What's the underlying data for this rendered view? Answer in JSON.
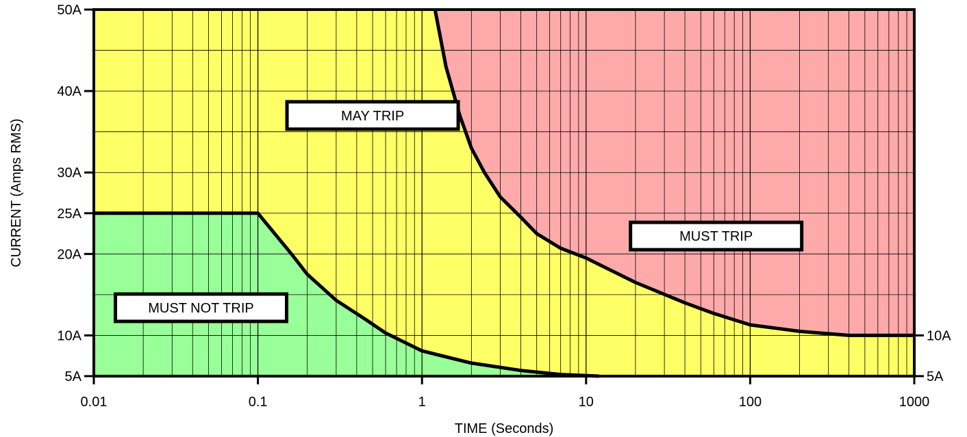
{
  "chart_data": {
    "type": "area",
    "title": "",
    "xlabel": "TIME (Seconds)",
    "ylabel": "CURRENT (Amps RMS)",
    "x_scale": "log",
    "xlim": [
      0.01,
      1000
    ],
    "ylim": [
      5,
      50
    ],
    "x_ticks": [
      {
        "value": 0.01,
        "label": "0.01"
      },
      {
        "value": 0.1,
        "label": "0.1"
      },
      {
        "value": 1,
        "label": "1"
      },
      {
        "value": 10,
        "label": "10"
      },
      {
        "value": 100,
        "label": "100"
      },
      {
        "value": 1000,
        "label": "1000"
      }
    ],
    "y_ticks": [
      {
        "value": 5,
        "label": "5A"
      },
      {
        "value": 10,
        "label": "10A"
      },
      {
        "value": 20,
        "label": "20A"
      },
      {
        "value": 25,
        "label": "25A"
      },
      {
        "value": 30,
        "label": "30A"
      },
      {
        "value": 40,
        "label": "40A"
      },
      {
        "value": 50,
        "label": "50A"
      }
    ],
    "right_labels": [
      {
        "value": 10,
        "label": "10A"
      },
      {
        "value": 5,
        "label": "5A"
      }
    ],
    "regions": [
      {
        "name": "MUST NOT TRIP",
        "color": "#99ff99",
        "label_at": {
          "x": 0.045,
          "y": 13.4
        }
      },
      {
        "name": "MAY TRIP",
        "color": "#ffff66",
        "label_at": {
          "x": 0.5,
          "y": 37
        }
      },
      {
        "name": "MUST TRIP",
        "color": "#ffaaaa",
        "label_at": {
          "x": 62,
          "y": 22.2
        }
      }
    ],
    "curves": [
      {
        "id": "must-not-trip-boundary",
        "points": [
          [
            0.01,
            25
          ],
          [
            0.1,
            25
          ],
          [
            0.16,
            20
          ],
          [
            0.2,
            17.5
          ],
          [
            0.3,
            14.3
          ],
          [
            0.45,
            12
          ],
          [
            0.6,
            10.3
          ],
          [
            1.0,
            8.1
          ],
          [
            2.0,
            6.6
          ],
          [
            4.0,
            5.7
          ],
          [
            7.0,
            5.2
          ],
          [
            12,
            5
          ]
        ]
      },
      {
        "id": "must-trip-boundary",
        "points": [
          [
            1.2,
            50
          ],
          [
            1.4,
            43
          ],
          [
            1.7,
            37
          ],
          [
            2.0,
            33
          ],
          [
            2.4,
            30
          ],
          [
            3.0,
            27
          ],
          [
            4.0,
            24.5
          ],
          [
            5.0,
            22.5
          ],
          [
            7.0,
            20.7
          ],
          [
            10,
            19.5
          ],
          [
            20,
            16.5
          ],
          [
            40,
            14
          ],
          [
            60,
            12.7
          ],
          [
            100,
            11.3
          ],
          [
            200,
            10.5
          ],
          [
            400,
            10
          ],
          [
            1000,
            10
          ]
        ]
      }
    ],
    "grid": true,
    "legend": "none"
  }
}
